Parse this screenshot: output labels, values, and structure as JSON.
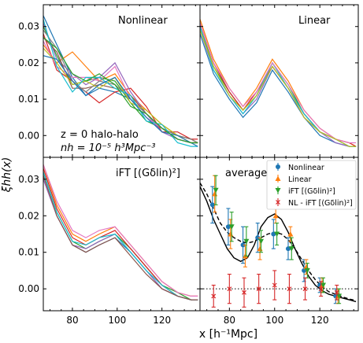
{
  "figure": {
    "ylabel": "ξhh(x)",
    "xlabel": "x [h⁻¹Mpc]"
  },
  "annotations": {
    "line1": "z = 0  halo-halo",
    "line2": "nh = 10⁻⁵ h³Mpc⁻³"
  },
  "colors": {
    "Nonlinear": "#1f77b4",
    "Linear": "#ff7f0e",
    "iFT": "#2ca02c",
    "NL-iFT": "#d62728"
  },
  "chart_data": [
    {
      "type": "line",
      "title": "Nonlinear",
      "xlim": [
        67,
        137
      ],
      "ylim": [
        -0.006,
        0.036
      ],
      "xticks": [
        80,
        100,
        120
      ],
      "yticks": [
        0.0,
        0.01,
        0.02,
        0.03
      ],
      "x": [
        67,
        73,
        80,
        86,
        92,
        99,
        106,
        113,
        120,
        127,
        133,
        136
      ],
      "series": [
        {
          "color": "#1f77b4",
          "values": [
            0.033,
            0.025,
            0.016,
            0.011,
            0.013,
            0.012,
            0.01,
            0.006,
            0.002,
            -0.001,
            -0.002,
            -0.002
          ]
        },
        {
          "color": "#ff7f0e",
          "values": [
            0.025,
            0.02,
            0.023,
            0.019,
            0.015,
            0.017,
            0.011,
            0.007,
            0.003,
            0.0,
            -0.001,
            -0.002
          ]
        },
        {
          "color": "#2ca02c",
          "values": [
            0.03,
            0.022,
            0.014,
            0.015,
            0.016,
            0.015,
            0.009,
            0.004,
            0.002,
            -0.001,
            -0.002,
            -0.002
          ]
        },
        {
          "color": "#d62728",
          "values": [
            0.028,
            0.018,
            0.015,
            0.012,
            0.009,
            0.012,
            0.013,
            0.008,
            0.001,
            0.001,
            -0.001,
            -0.001
          ]
        },
        {
          "color": "#9467bd",
          "values": [
            0.031,
            0.021,
            0.017,
            0.014,
            0.016,
            0.02,
            0.012,
            0.006,
            0.001,
            -0.001,
            -0.002,
            -0.002
          ]
        },
        {
          "color": "#8c564b",
          "values": [
            0.027,
            0.023,
            0.013,
            0.013,
            0.014,
            0.013,
            0.011,
            0.006,
            0.002,
            0.0,
            -0.001,
            -0.002
          ]
        },
        {
          "color": "#e377c2",
          "values": [
            0.026,
            0.019,
            0.016,
            0.016,
            0.015,
            0.019,
            0.01,
            0.005,
            0.002,
            -0.001,
            -0.002,
            -0.002
          ]
        },
        {
          "color": "#7f7f7f",
          "values": [
            0.029,
            0.024,
            0.015,
            0.012,
            0.015,
            0.014,
            0.01,
            0.006,
            0.002,
            0.0,
            -0.001,
            -0.002
          ]
        },
        {
          "color": "#bcbd22",
          "values": [
            0.024,
            0.02,
            0.014,
            0.015,
            0.013,
            0.016,
            0.009,
            0.007,
            0.003,
            0.0,
            -0.002,
            -0.002
          ]
        },
        {
          "color": "#17becf",
          "values": [
            0.032,
            0.019,
            0.012,
            0.016,
            0.016,
            0.013,
            0.011,
            0.004,
            0.003,
            -0.002,
            -0.003,
            -0.003
          ]
        },
        {
          "color": "#1f77b4",
          "values": [
            0.022,
            0.021,
            0.015,
            0.011,
            0.014,
            0.016,
            0.01,
            0.005,
            0.001,
            0.0,
            -0.002,
            -0.003
          ]
        },
        {
          "color": "#2ca02c",
          "values": [
            0.027,
            0.024,
            0.017,
            0.015,
            0.017,
            0.014,
            0.008,
            0.006,
            0.002,
            -0.001,
            -0.002,
            -0.002
          ]
        }
      ]
    },
    {
      "type": "line",
      "title": "Linear",
      "xlim": [
        67,
        137
      ],
      "ylim": [
        -0.006,
        0.036
      ],
      "xticks": [
        80,
        100,
        120
      ],
      "yticks": [
        0.0,
        0.01,
        0.02,
        0.03
      ],
      "x": [
        67,
        73,
        80,
        86,
        92,
        99,
        106,
        113,
        120,
        127,
        133,
        136
      ],
      "series": [
        {
          "color": "#1f77b4",
          "values": [
            0.028,
            0.017,
            0.01,
            0.005,
            0.009,
            0.018,
            0.012,
            0.005,
            0.0,
            -0.002,
            -0.003,
            -0.003
          ]
        },
        {
          "color": "#ff7f0e",
          "values": [
            0.032,
            0.021,
            0.013,
            0.008,
            0.013,
            0.021,
            0.015,
            0.007,
            0.002,
            -0.001,
            -0.002,
            -0.003
          ]
        },
        {
          "color": "#2ca02c",
          "values": [
            0.03,
            0.019,
            0.012,
            0.007,
            0.011,
            0.02,
            0.014,
            0.006,
            0.001,
            -0.001,
            -0.003,
            -0.003
          ]
        },
        {
          "color": "#d62728",
          "values": [
            0.031,
            0.02,
            0.012,
            0.007,
            0.012,
            0.019,
            0.013,
            0.006,
            0.001,
            -0.001,
            -0.002,
            -0.003
          ]
        },
        {
          "color": "#9467bd",
          "values": [
            0.029,
            0.018,
            0.011,
            0.006,
            0.01,
            0.019,
            0.013,
            0.005,
            0.001,
            -0.002,
            -0.003,
            -0.003
          ]
        },
        {
          "color": "#17becf",
          "values": [
            0.03,
            0.018,
            0.011,
            0.006,
            0.011,
            0.02,
            0.013,
            0.006,
            0.001,
            -0.001,
            -0.003,
            -0.003
          ]
        },
        {
          "color": "#e377c2",
          "values": [
            0.031,
            0.02,
            0.013,
            0.008,
            0.012,
            0.02,
            0.014,
            0.007,
            0.002,
            -0.001,
            -0.002,
            -0.002
          ]
        },
        {
          "color": "#bcbd22",
          "values": [
            0.029,
            0.019,
            0.011,
            0.007,
            0.011,
            0.019,
            0.013,
            0.005,
            0.001,
            -0.001,
            -0.003,
            -0.003
          ]
        }
      ]
    },
    {
      "type": "line",
      "title": "iFT [(Gδlin)²]",
      "xlim": [
        67,
        137
      ],
      "ylim": [
        -0.006,
        0.036
      ],
      "xticks": [
        80,
        100,
        120
      ],
      "yticks": [
        0.0,
        0.01,
        0.02,
        0.03
      ],
      "x": [
        67,
        73,
        80,
        86,
        92,
        99,
        106,
        113,
        120,
        127,
        133,
        136
      ],
      "series": [
        {
          "color": "#1f77b4",
          "values": [
            0.031,
            0.02,
            0.012,
            0.01,
            0.012,
            0.014,
            0.01,
            0.005,
            0.0,
            -0.002,
            -0.003,
            -0.003
          ]
        },
        {
          "color": "#ff7f0e",
          "values": [
            0.034,
            0.023,
            0.015,
            0.013,
            0.015,
            0.017,
            0.012,
            0.007,
            0.002,
            -0.001,
            -0.002,
            -0.002
          ]
        },
        {
          "color": "#2ca02c",
          "values": [
            0.032,
            0.021,
            0.013,
            0.011,
            0.013,
            0.015,
            0.011,
            0.006,
            0.001,
            -0.001,
            -0.003,
            -0.003
          ]
        },
        {
          "color": "#d62728",
          "values": [
            0.033,
            0.022,
            0.014,
            0.012,
            0.014,
            0.016,
            0.011,
            0.006,
            0.001,
            -0.002,
            -0.003,
            -0.003
          ]
        },
        {
          "color": "#9467bd",
          "values": [
            0.03,
            0.02,
            0.012,
            0.011,
            0.013,
            0.015,
            0.01,
            0.005,
            0.0,
            -0.002,
            -0.003,
            -0.003
          ]
        },
        {
          "color": "#17becf",
          "values": [
            0.032,
            0.021,
            0.013,
            0.012,
            0.014,
            0.015,
            0.01,
            0.005,
            0.001,
            -0.002,
            -0.003,
            -0.003
          ]
        },
        {
          "color": "#e377c2",
          "values": [
            0.034,
            0.024,
            0.016,
            0.014,
            0.016,
            0.017,
            0.012,
            0.007,
            0.002,
            -0.001,
            -0.002,
            -0.002
          ]
        },
        {
          "color": "#8c564b",
          "values": [
            0.031,
            0.02,
            0.012,
            0.01,
            0.012,
            0.014,
            0.009,
            0.004,
            0.0,
            -0.002,
            -0.003,
            -0.003
          ]
        }
      ]
    },
    {
      "type": "scatter",
      "title": "average",
      "xlim": [
        67,
        137
      ],
      "ylim": [
        -0.006,
        0.036
      ],
      "xticks": [
        80,
        100,
        120
      ],
      "yticks": [
        0.0,
        0.01,
        0.02,
        0.03
      ],
      "zero_line": true,
      "series": [
        {
          "name": "Nonlinear",
          "color": "#1f77b4",
          "marker": "circle",
          "x": [
            72.5,
            79.5,
            86,
            92.5,
            99.5,
            106,
            113,
            120,
            127
          ],
          "values": [
            0.023,
            0.017,
            0.012,
            0.014,
            0.015,
            0.011,
            0.005,
            0.001,
            -0.002
          ],
          "errors": [
            0.005,
            0.005,
            0.005,
            0.004,
            0.004,
            0.003,
            0.003,
            0.002,
            0.002
          ]
        },
        {
          "name": "Linear",
          "color": "#ff7f0e",
          "marker": "triangle-up",
          "x": [
            73.5,
            80.5,
            87,
            93.5,
            100.5,
            107,
            114,
            121,
            128
          ],
          "values": [
            0.026,
            0.015,
            0.009,
            0.011,
            0.02,
            0.015,
            0.006,
            0.001,
            -0.002
          ],
          "errors": [
            0.005,
            0.004,
            0.003,
            0.003,
            0.002,
            0.002,
            0.002,
            0.002,
            0.002
          ]
        },
        {
          "name": "iFT [(Gδlin)²]",
          "color": "#2ca02c",
          "marker": "triangle-down",
          "x": [
            74,
            81,
            87.5,
            94,
            101,
            107.5,
            114.5,
            121.5,
            128.5
          ],
          "values": [
            0.027,
            0.017,
            0.013,
            0.013,
            0.015,
            0.011,
            0.005,
            0.001,
            -0.002
          ],
          "errors": [
            0.004,
            0.004,
            0.004,
            0.003,
            0.003,
            0.003,
            0.002,
            0.002,
            0.002
          ]
        },
        {
          "name": "NL - iFT [(Gδlin)²]",
          "color": "#d62728",
          "marker": "x",
          "x": [
            73,
            80,
            86.5,
            93,
            100,
            106.5,
            113.5,
            120.5,
            127.5
          ],
          "values": [
            -0.002,
            0.0,
            -0.001,
            0.0,
            0.001,
            0.0,
            0.0,
            0.0,
            -0.001
          ],
          "errors": [
            0.003,
            0.004,
            0.004,
            0.004,
            0.004,
            0.004,
            0.003,
            0.002,
            0.002
          ]
        }
      ],
      "curves": [
        {
          "style": "solid",
          "x": [
            67,
            70,
            73,
            76,
            79,
            82,
            85,
            88,
            91,
            94,
            97,
            100,
            103,
            106,
            109,
            112,
            115,
            118,
            121,
            124,
            127,
            130,
            133,
            136
          ],
          "values": [
            0.028,
            0.024,
            0.019,
            0.015,
            0.011,
            0.0085,
            0.0075,
            0.0085,
            0.012,
            0.017,
            0.0195,
            0.0205,
            0.019,
            0.0155,
            0.011,
            0.007,
            0.0035,
            0.001,
            -0.0005,
            -0.0015,
            -0.002,
            -0.0025,
            -0.003,
            -0.0035
          ]
        },
        {
          "style": "dashed",
          "x": [
            67,
            70,
            73,
            76,
            79,
            82,
            85,
            88,
            91,
            94,
            97,
            100,
            103,
            106,
            109,
            112,
            115,
            118,
            121,
            124,
            127,
            130,
            133,
            136
          ],
          "values": [
            0.029,
            0.026,
            0.022,
            0.018,
            0.0155,
            0.014,
            0.013,
            0.0125,
            0.013,
            0.014,
            0.015,
            0.0155,
            0.015,
            0.0135,
            0.011,
            0.008,
            0.005,
            0.0025,
            0.0005,
            -0.0008,
            -0.0015,
            -0.0022,
            -0.0028,
            -0.0032
          ]
        }
      ]
    }
  ]
}
